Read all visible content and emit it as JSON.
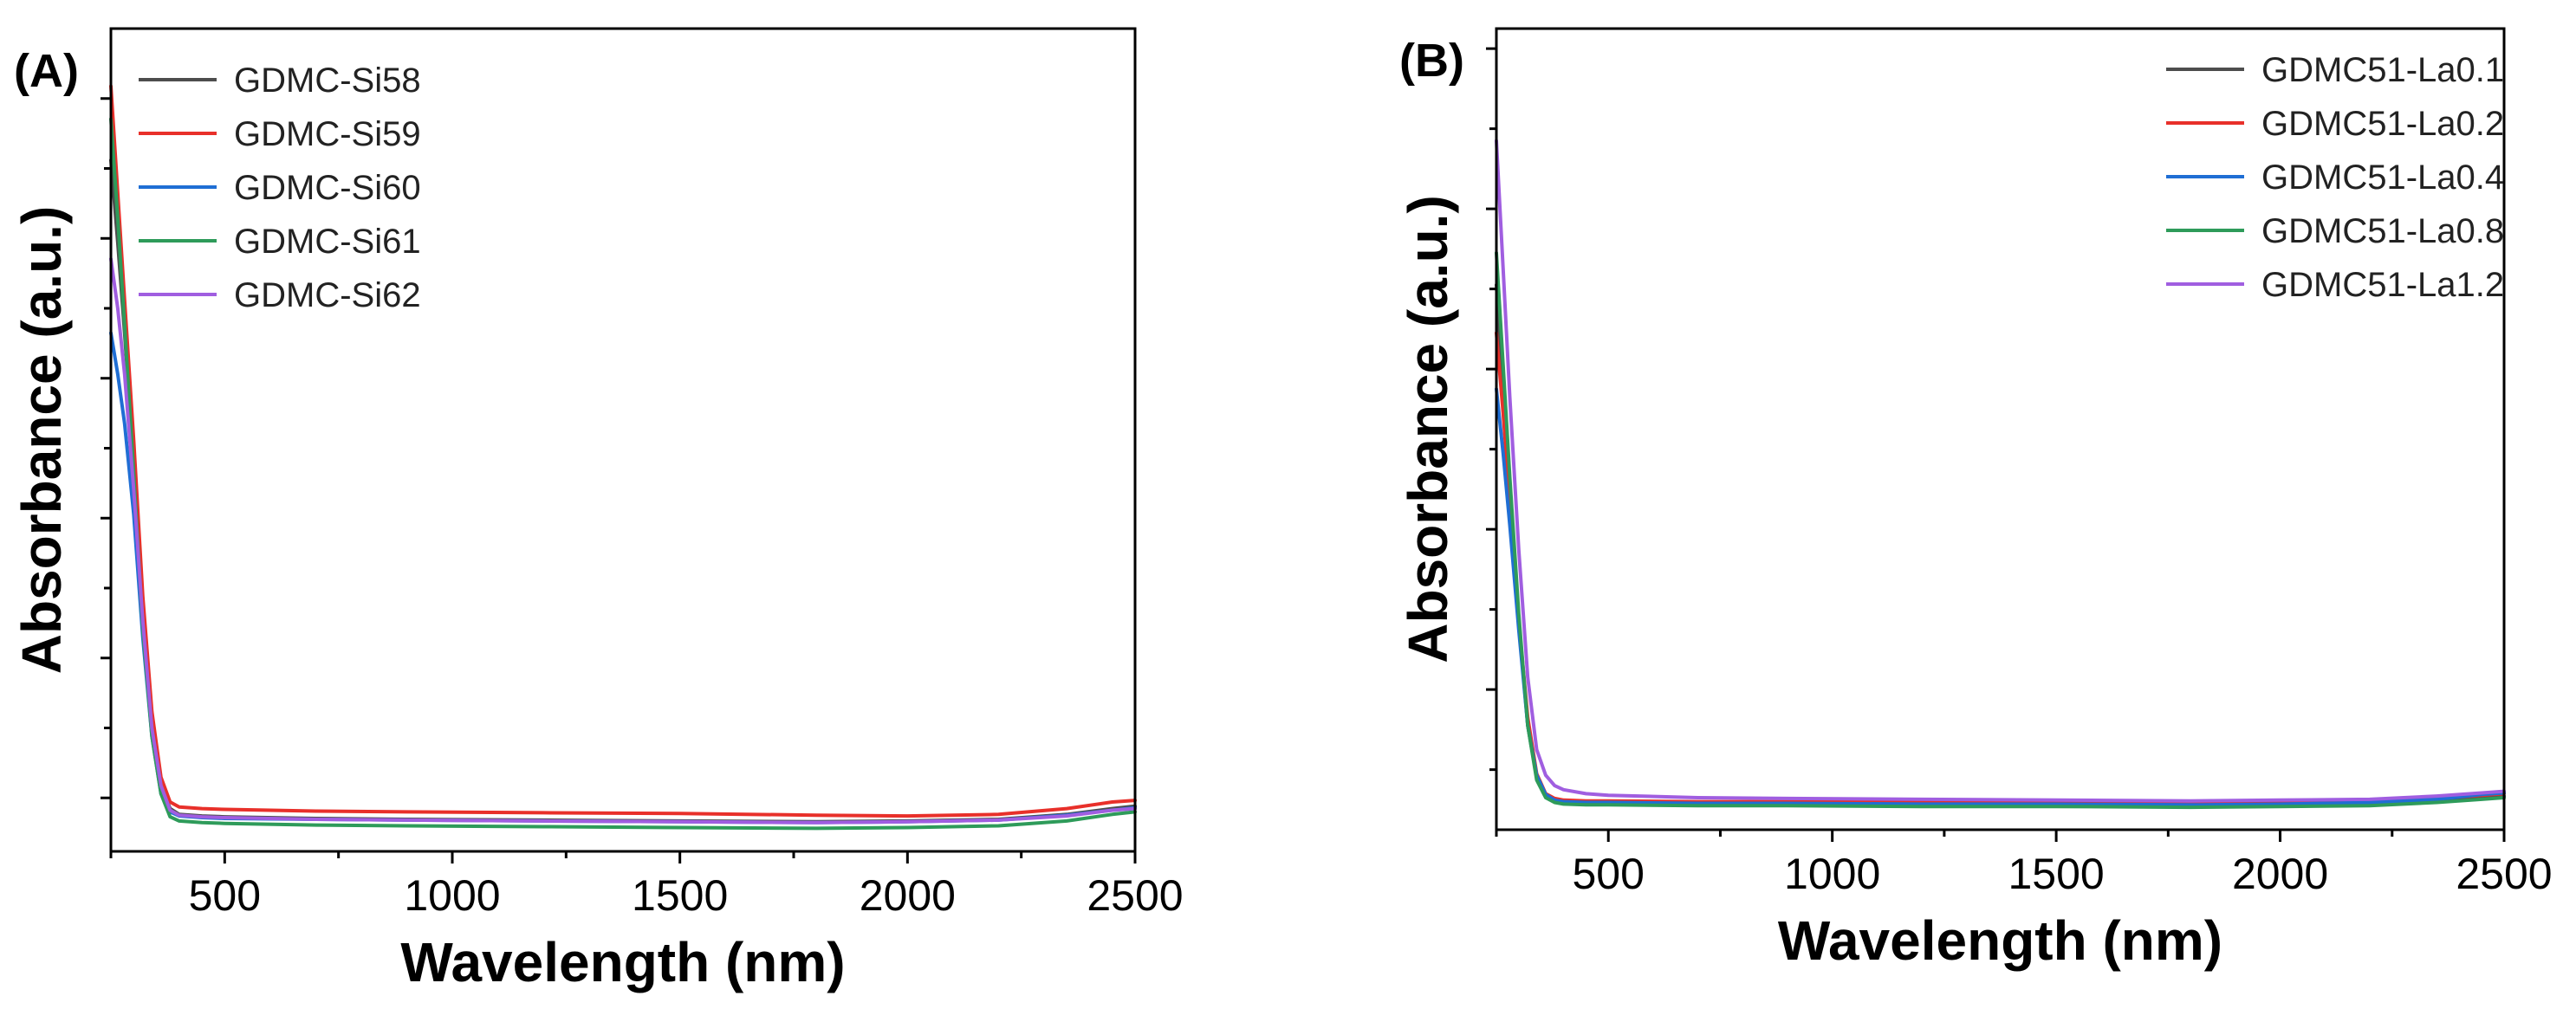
{
  "chart_data": [
    {
      "panel": "(A)",
      "type": "line",
      "title": "",
      "xlabel": "Wavelength (nm)",
      "ylabel": "Absorbance (a.u.)",
      "xlim": [
        250,
        2500
      ],
      "ylim": [
        0,
        1.0
      ],
      "xticks": [
        500,
        1000,
        1500,
        2000,
        2500
      ],
      "yticks_unlabeled": true,
      "legend_position": "top-left",
      "series": [
        {
          "name": "GDMC-Si58",
          "color": "#4d4d4d",
          "x": [
            250,
            265,
            280,
            300,
            320,
            340,
            360,
            380,
            400,
            450,
            500,
            700,
            900,
            1200,
            1500,
            1800,
            2000,
            2200,
            2350,
            2450,
            2500
          ],
          "y": [
            0.84,
            0.74,
            0.63,
            0.47,
            0.29,
            0.16,
            0.08,
            0.052,
            0.045,
            0.043,
            0.042,
            0.04,
            0.039,
            0.038,
            0.037,
            0.036,
            0.037,
            0.039,
            0.045,
            0.052,
            0.055
          ]
        },
        {
          "name": "GDMC-Si59",
          "color": "#e8302a",
          "x": [
            250,
            265,
            280,
            300,
            320,
            340,
            360,
            380,
            400,
            450,
            500,
            700,
            900,
            1200,
            1500,
            1800,
            2000,
            2200,
            2350,
            2450,
            2500
          ],
          "y": [
            0.93,
            0.8,
            0.67,
            0.5,
            0.31,
            0.17,
            0.09,
            0.06,
            0.054,
            0.052,
            0.051,
            0.049,
            0.048,
            0.047,
            0.046,
            0.044,
            0.043,
            0.045,
            0.052,
            0.06,
            0.062
          ]
        },
        {
          "name": "GDMC-Si60",
          "color": "#1f6ed4",
          "x": [
            250,
            265,
            280,
            300,
            320,
            340,
            360,
            380,
            400,
            450,
            500,
            700,
            900,
            1200,
            1500,
            1800,
            2000,
            2200,
            2350,
            2450,
            2500
          ],
          "y": [
            0.63,
            0.58,
            0.52,
            0.41,
            0.26,
            0.14,
            0.07,
            0.048,
            0.043,
            0.041,
            0.04,
            0.039,
            0.038,
            0.037,
            0.036,
            0.035,
            0.036,
            0.038,
            0.044,
            0.05,
            0.053
          ]
        },
        {
          "name": "GDMC-Si61",
          "color": "#2e9b5a",
          "x": [
            250,
            265,
            280,
            300,
            320,
            340,
            360,
            380,
            400,
            450,
            500,
            700,
            900,
            1200,
            1500,
            1800,
            2000,
            2200,
            2350,
            2450,
            2500
          ],
          "y": [
            0.89,
            0.77,
            0.64,
            0.46,
            0.27,
            0.14,
            0.07,
            0.042,
            0.037,
            0.035,
            0.034,
            0.032,
            0.031,
            0.03,
            0.029,
            0.028,
            0.029,
            0.031,
            0.037,
            0.045,
            0.048
          ]
        },
        {
          "name": "GDMC-Si62",
          "color": "#a05ee0",
          "x": [
            250,
            265,
            280,
            300,
            320,
            340,
            360,
            380,
            400,
            450,
            500,
            700,
            900,
            1200,
            1500,
            1800,
            2000,
            2200,
            2350,
            2450,
            2500
          ],
          "y": [
            0.72,
            0.66,
            0.58,
            0.44,
            0.28,
            0.15,
            0.08,
            0.05,
            0.044,
            0.042,
            0.041,
            0.039,
            0.038,
            0.037,
            0.036,
            0.035,
            0.036,
            0.038,
            0.043,
            0.05,
            0.052
          ]
        }
      ]
    },
    {
      "panel": "(B)",
      "type": "line",
      "title": "",
      "xlabel": "Wavelength (nm)",
      "ylabel": "Absorbance (a.u.)",
      "xlim": [
        250,
        2500
      ],
      "ylim": [
        0,
        1.0
      ],
      "xticks": [
        500,
        1000,
        1500,
        2000,
        2500
      ],
      "yticks_unlabeled": true,
      "legend_position": "top-right",
      "series": [
        {
          "name": "GDMC51-La0.1",
          "color": "#4d4d4d",
          "x": [
            250,
            265,
            280,
            300,
            320,
            340,
            360,
            380,
            400,
            450,
            500,
            700,
            900,
            1200,
            1500,
            1800,
            2000,
            2200,
            2350,
            2450,
            2500
          ],
          "y": [
            0.68,
            0.55,
            0.42,
            0.26,
            0.13,
            0.065,
            0.042,
            0.036,
            0.034,
            0.033,
            0.033,
            0.032,
            0.032,
            0.031,
            0.031,
            0.03,
            0.031,
            0.032,
            0.036,
            0.04,
            0.042
          ]
        },
        {
          "name": "GDMC51-La0.2",
          "color": "#e8302a",
          "x": [
            250,
            265,
            280,
            300,
            320,
            340,
            360,
            380,
            400,
            450,
            500,
            700,
            900,
            1200,
            1500,
            1800,
            2000,
            2200,
            2350,
            2450,
            2500
          ],
          "y": [
            0.62,
            0.52,
            0.41,
            0.26,
            0.14,
            0.07,
            0.045,
            0.039,
            0.037,
            0.036,
            0.036,
            0.035,
            0.035,
            0.034,
            0.034,
            0.033,
            0.034,
            0.035,
            0.039,
            0.043,
            0.045
          ]
        },
        {
          "name": "GDMC51-La0.4",
          "color": "#1f6ed4",
          "x": [
            250,
            265,
            280,
            300,
            320,
            340,
            360,
            380,
            400,
            450,
            500,
            700,
            900,
            1200,
            1500,
            1800,
            2000,
            2200,
            2350,
            2450,
            2500
          ],
          "y": [
            0.55,
            0.47,
            0.38,
            0.25,
            0.13,
            0.068,
            0.044,
            0.037,
            0.035,
            0.034,
            0.034,
            0.033,
            0.033,
            0.032,
            0.032,
            0.031,
            0.032,
            0.034,
            0.038,
            0.044,
            0.046
          ]
        },
        {
          "name": "GDMC51-La0.8",
          "color": "#2e9b5a",
          "x": [
            250,
            265,
            280,
            300,
            320,
            340,
            360,
            380,
            400,
            450,
            500,
            700,
            900,
            1200,
            1500,
            1800,
            2000,
            2200,
            2350,
            2450,
            2500
          ],
          "y": [
            0.72,
            0.58,
            0.44,
            0.27,
            0.13,
            0.062,
            0.04,
            0.034,
            0.032,
            0.031,
            0.031,
            0.03,
            0.03,
            0.029,
            0.029,
            0.028,
            0.029,
            0.03,
            0.034,
            0.038,
            0.04
          ]
        },
        {
          "name": "GDMC51-La1.2",
          "color": "#a05ee0",
          "x": [
            250,
            265,
            280,
            300,
            320,
            340,
            360,
            380,
            400,
            450,
            500,
            700,
            900,
            1200,
            1500,
            1800,
            2000,
            2200,
            2350,
            2450,
            2500
          ],
          "y": [
            0.86,
            0.7,
            0.54,
            0.35,
            0.19,
            0.1,
            0.068,
            0.055,
            0.05,
            0.045,
            0.043,
            0.04,
            0.039,
            0.038,
            0.037,
            0.036,
            0.037,
            0.038,
            0.042,
            0.046,
            0.048
          ]
        }
      ]
    }
  ]
}
